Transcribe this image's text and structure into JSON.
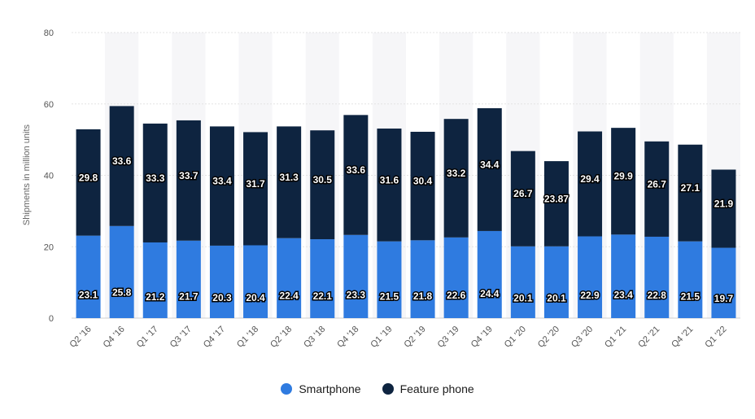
{
  "chart_data": {
    "type": "bar",
    "stacked": true,
    "title": "",
    "xlabel": "",
    "ylabel": "Shipments in million units",
    "ylim": [
      0,
      80
    ],
    "yticks": [
      0,
      20,
      40,
      60,
      80
    ],
    "grid": true,
    "legend_position": "bottom",
    "categories": [
      "Q2 '16",
      "Q4 '16",
      "Q1 '17",
      "Q3 '17",
      "Q4 '17",
      "Q1 '18",
      "Q2 '18",
      "Q3 '18",
      "Q4 '18",
      "Q1 '19",
      "Q2 '19",
      "Q3 '19",
      "Q4 '19",
      "Q1 '20",
      "Q2 '20",
      "Q3 '20",
      "Q1 '21",
      "Q2 '21",
      "Q4 '21",
      "Q1 '22"
    ],
    "series": [
      {
        "name": "Smartphone",
        "color": "#2f7be0",
        "values": [
          23.1,
          25.8,
          21.2,
          21.7,
          20.3,
          20.4,
          22.4,
          22.1,
          23.3,
          21.5,
          21.8,
          22.6,
          24.4,
          20.1,
          20.1,
          22.9,
          23.4,
          22.8,
          21.5,
          19.7
        ],
        "labels": [
          "23.1",
          "25.8",
          "21.2",
          "21.7",
          "20.3",
          "20.4",
          "22.4",
          "22.1",
          "23.3",
          "21.5",
          "21.8",
          "22.6",
          "24.4",
          "20.1",
          "20.1",
          "22.9",
          "23.4",
          "22.8",
          "21.5",
          "19.7"
        ]
      },
      {
        "name": "Feature phone",
        "color": "#0e2440",
        "values": [
          29.8,
          33.6,
          33.3,
          33.7,
          33.4,
          31.7,
          31.3,
          30.5,
          33.6,
          31.6,
          30.4,
          33.2,
          34.4,
          26.7,
          23.87,
          29.4,
          29.9,
          26.7,
          27.1,
          21.9
        ],
        "labels": [
          "29.8",
          "33.6",
          "33.3",
          "33.7",
          "33.4",
          "31.7",
          "31.3",
          "30.5",
          "33.6",
          "31.6",
          "30.4",
          "33.2",
          "34.4",
          "26.7",
          "23.87",
          "29.4",
          "29.9",
          "26.7",
          "27.1",
          "21.9"
        ]
      }
    ]
  }
}
